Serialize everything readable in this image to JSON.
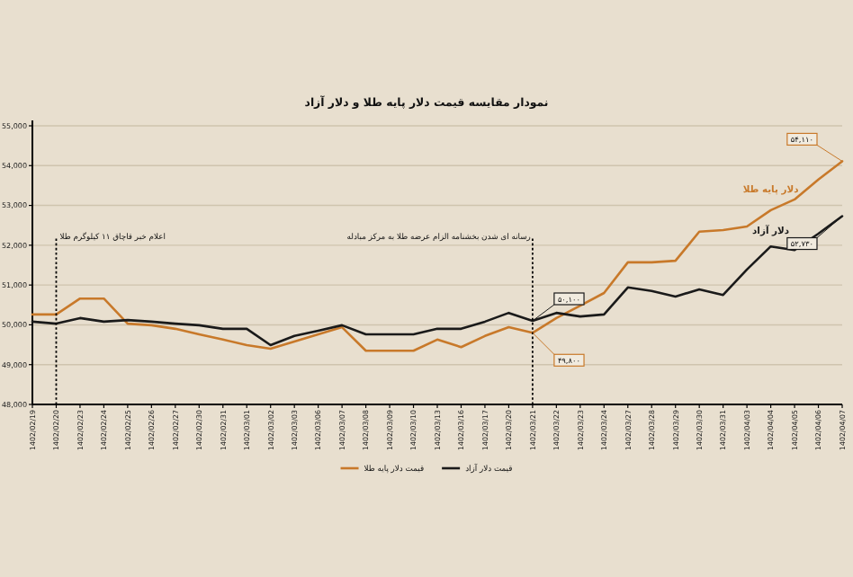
{
  "chart_data": {
    "type": "line",
    "title": "نمودار مقایسه قیمت دلار پایه طلا و دلار آزاد",
    "categories": [
      "1402/02/19",
      "1402/02/20",
      "1402/02/23",
      "1402/02/24",
      "1402/02/25",
      "1402/02/26",
      "1402/02/27",
      "1402/02/30",
      "1402/02/31",
      "1402/03/01",
      "1402/03/02",
      "1402/03/03",
      "1402/03/06",
      "1402/03/07",
      "1402/03/08",
      "1402/03/09",
      "1402/03/10",
      "1402/03/13",
      "1402/03/16",
      "1402/03/17",
      "1402/03/20",
      "1402/03/21",
      "1402/03/22",
      "1402/03/23",
      "1402/03/24",
      "1402/03/27",
      "1402/03/28",
      "1402/03/29",
      "1402/03/30",
      "1402/03/31",
      "1402/04/03",
      "1402/04/04",
      "1402/04/05",
      "1402/04/06",
      "1402/04/07"
    ],
    "series": [
      {
        "name": "قیمت دلار پایه طلا",
        "color": "#c8792a",
        "values": [
          50260,
          50260,
          50660,
          50660,
          50030,
          49990,
          49900,
          49760,
          49630,
          49490,
          49400,
          49580,
          49760,
          49940,
          49350,
          49350,
          49350,
          49630,
          49440,
          49720,
          49940,
          49800,
          50170,
          50480,
          50800,
          51570,
          51570,
          51610,
          52340,
          52380,
          52470,
          52880,
          53150,
          53650,
          54110
        ],
        "value_labels": [
          null,
          null,
          null,
          null,
          null,
          null,
          null,
          null,
          null,
          null,
          null,
          null,
          null,
          null,
          null,
          null,
          null,
          null,
          null,
          null,
          null,
          "۴۹,۸۰۰",
          null,
          null,
          null,
          null,
          null,
          null,
          null,
          null,
          null,
          null,
          null,
          null,
          "۵۴,۱۱۰"
        ]
      },
      {
        "name": "قیمت دلار آزاد",
        "color": "#1a1a1a",
        "values": [
          50080,
          50030,
          50170,
          50080,
          50120,
          50080,
          50030,
          49990,
          49900,
          49900,
          49490,
          49720,
          49850,
          49990,
          49760,
          49760,
          49760,
          49900,
          49900,
          50080,
          50300,
          50100,
          50300,
          50210,
          50260,
          50940,
          50850,
          50710,
          50890,
          50750,
          51390,
          51970,
          51880,
          52290,
          52730
        ],
        "value_labels": [
          null,
          null,
          null,
          null,
          null,
          null,
          null,
          null,
          null,
          null,
          null,
          null,
          null,
          null,
          null,
          null,
          null,
          null,
          null,
          null,
          null,
          "۵۰,۱۰۰",
          null,
          null,
          null,
          null,
          null,
          null,
          null,
          null,
          null,
          null,
          null,
          null,
          "۵۲,۷۳۰"
        ]
      }
    ],
    "ylim": [
      48000,
      55000
    ],
    "yticks": [
      {
        "value": 48000,
        "label": "48,000"
      },
      {
        "value": 49000,
        "label": "49,000"
      },
      {
        "value": 50000,
        "label": "50,000"
      },
      {
        "value": 51000,
        "label": "51,000"
      },
      {
        "value": 52000,
        "label": "52,000"
      },
      {
        "value": 53000,
        "label": "53,000"
      },
      {
        "value": 54000,
        "label": "54,000"
      },
      {
        "value": 55000,
        "label": "55,000"
      }
    ],
    "ref_lines": [
      {
        "axis": "x",
        "value": "1402/02/20",
        "label": "اعلام خبر قاچاق ۱۱ کیلوگرم طلا"
      },
      {
        "axis": "x",
        "value": "1402/03/21",
        "label": "رسانه ای شدن بخشنامه الزام عرضه طلا به مرکز مبادله"
      }
    ],
    "annotations": [
      "دلار پایه طلا",
      "دلار آزاد"
    ],
    "grid": "y",
    "legend": "bottom"
  }
}
